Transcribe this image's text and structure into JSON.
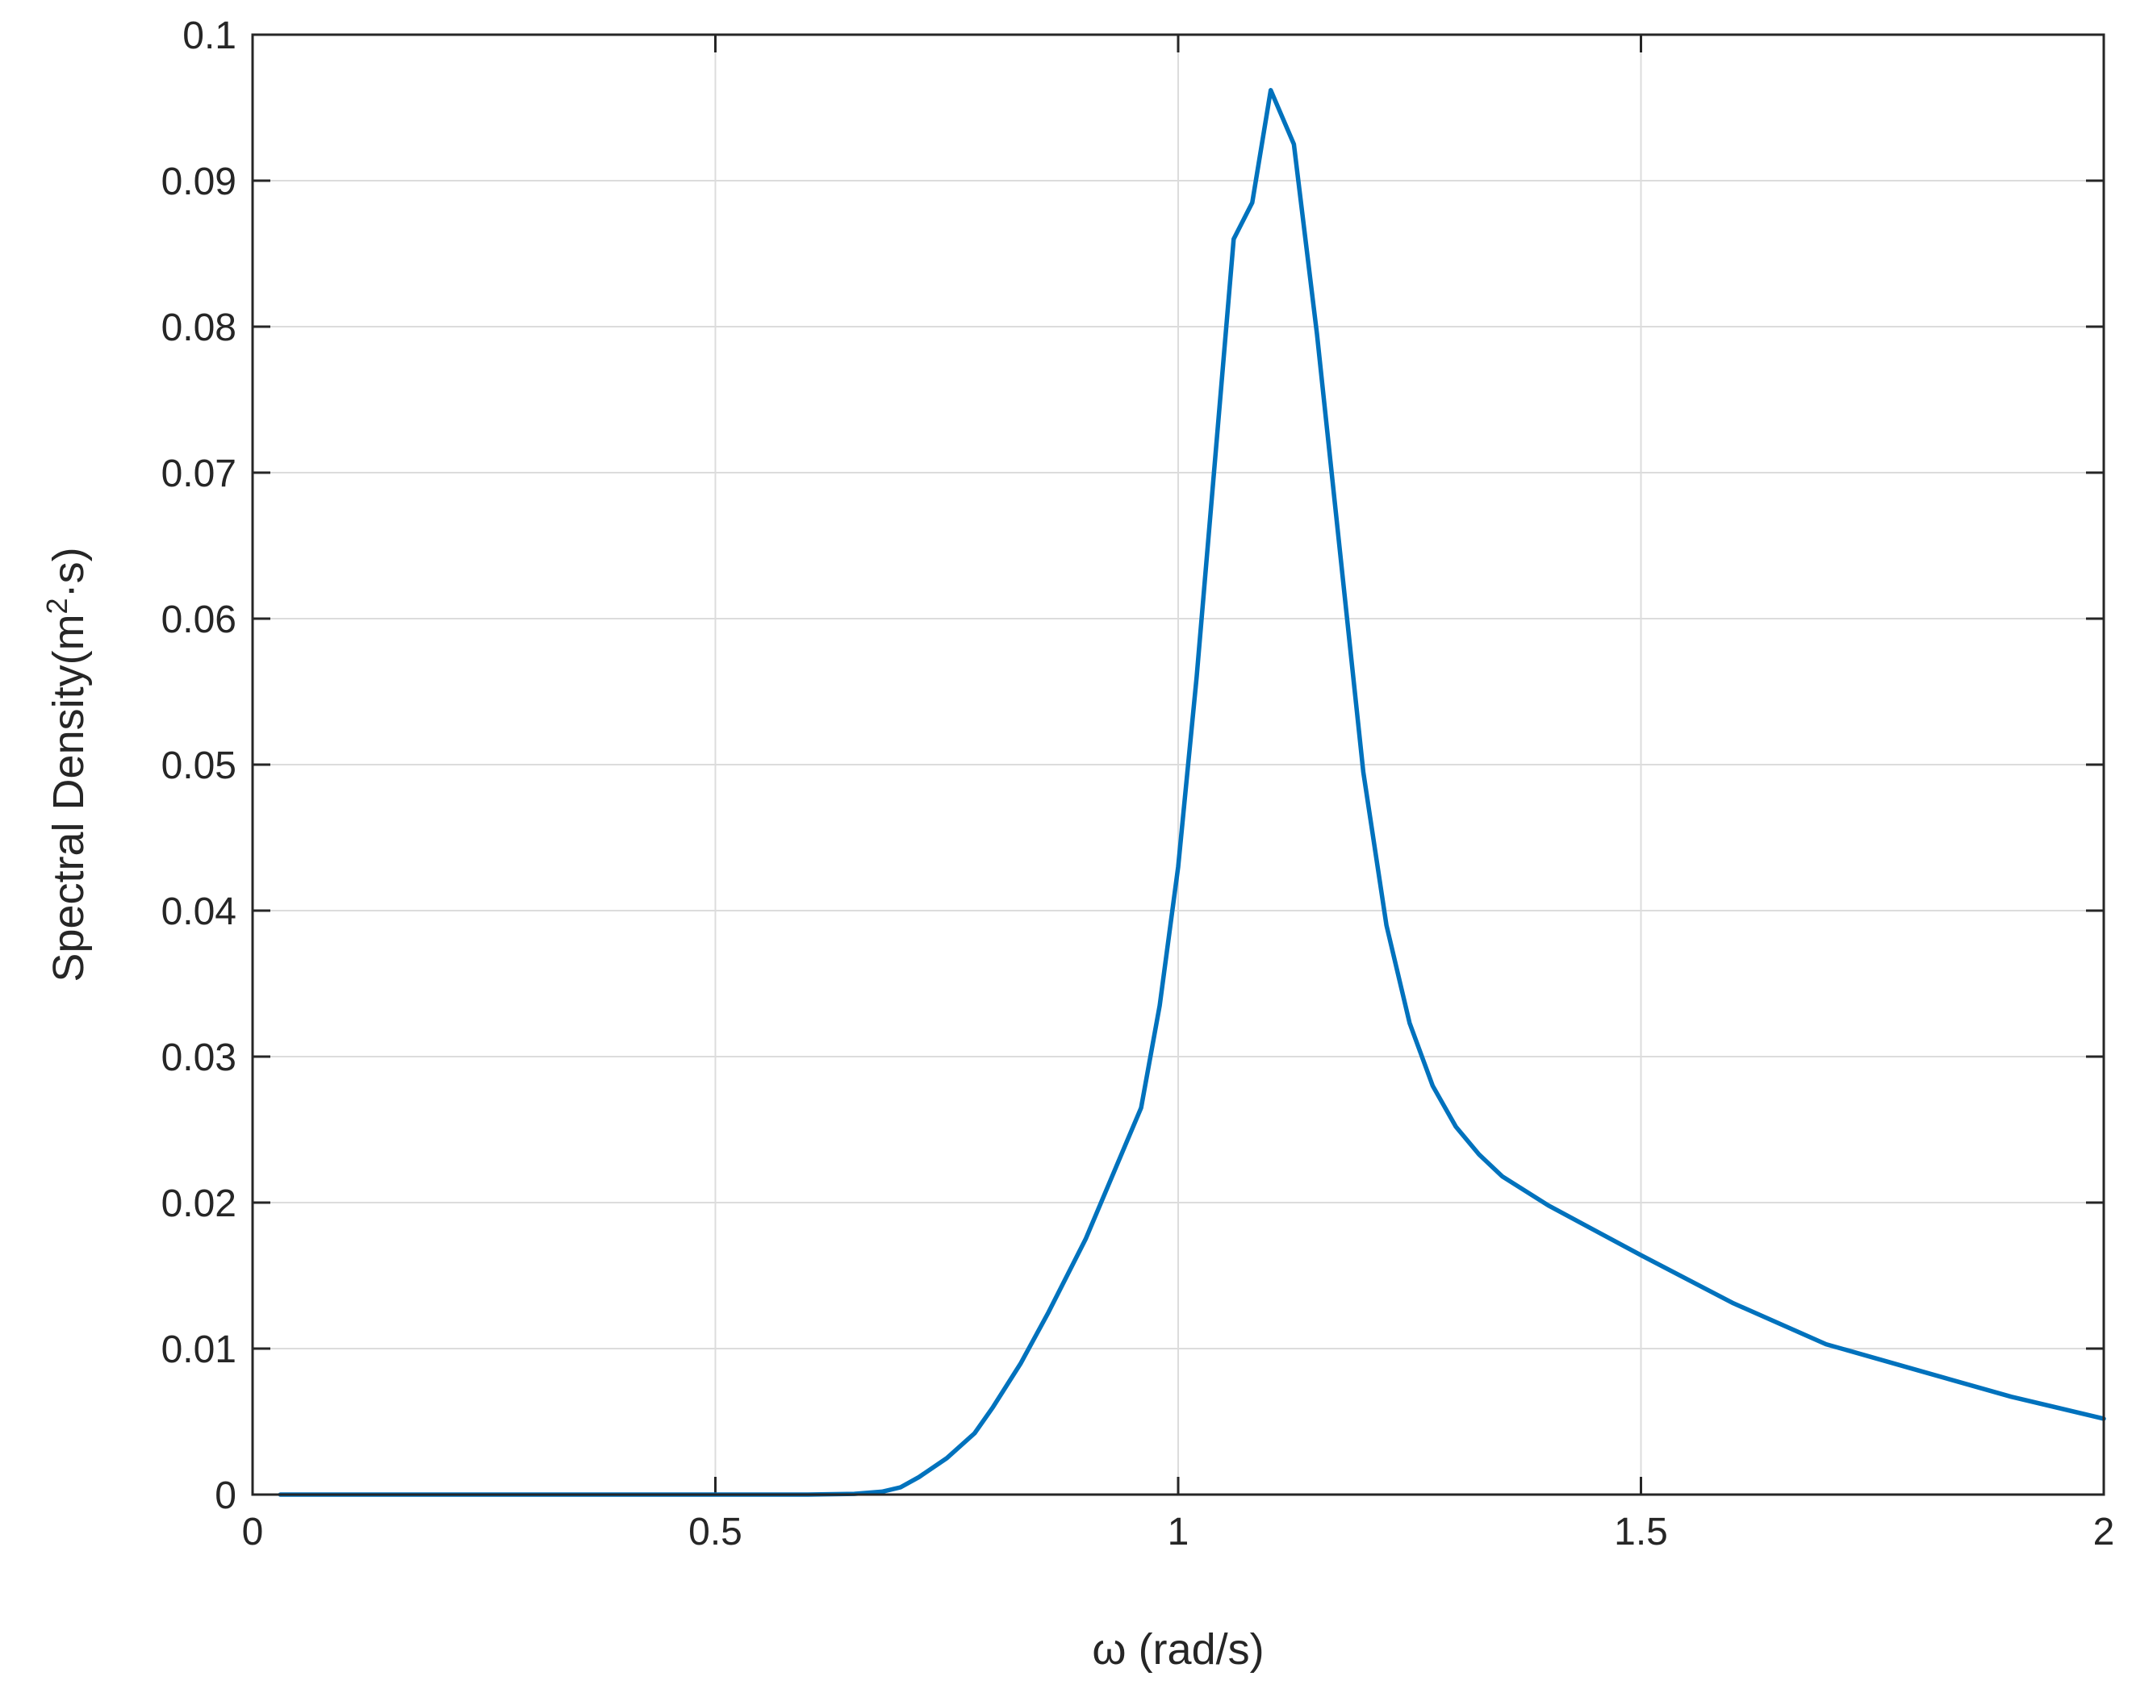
{
  "chart_data": {
    "type": "line",
    "title": "",
    "xlabel": "ω (rad/s)",
    "ylabel": "Spectral Density(m²·s)",
    "ylabel_parts": {
      "prefix": "Spectral Density(m",
      "superscript": "2",
      "suffix": "·s)"
    },
    "xlim": [
      0,
      2
    ],
    "ylim": [
      0,
      0.1
    ],
    "xticks": [
      0,
      0.5,
      1,
      1.5,
      2
    ],
    "xtick_labels": [
      "0",
      "0.5",
      "1",
      "1.5",
      "2"
    ],
    "yticks": [
      0,
      0.01,
      0.02,
      0.03,
      0.04,
      0.05,
      0.06,
      0.07,
      0.08,
      0.09,
      0.1
    ],
    "ytick_labels": [
      "0",
      "0.01",
      "0.02",
      "0.03",
      "0.04",
      "0.05",
      "0.06",
      "0.07",
      "0.08",
      "0.09",
      "0.1"
    ],
    "grid": true,
    "line_color": "#0072BD",
    "series": [
      {
        "x": [
          0.03,
          0.2,
          0.4,
          0.6,
          0.65,
          0.68,
          0.7,
          0.72,
          0.75,
          0.78,
          0.8,
          0.83,
          0.86,
          0.9,
          0.93,
          0.96,
          0.98,
          1.0,
          1.02,
          1.04,
          1.06,
          1.08,
          1.1,
          1.125,
          1.15,
          1.175,
          1.2,
          1.225,
          1.25,
          1.275,
          1.3,
          1.325,
          1.35,
          1.4,
          1.5,
          1.6,
          1.7,
          1.8,
          1.9,
          2.0
        ],
        "y": [
          0,
          0,
          0,
          0,
          5e-05,
          0.0002,
          0.0005,
          0.0012,
          0.0025,
          0.0042,
          0.006,
          0.009,
          0.0125,
          0.0175,
          0.022,
          0.0265,
          0.0335,
          0.043,
          0.056,
          0.071,
          0.086,
          0.0885,
          0.0962,
          0.0925,
          0.0795,
          0.0645,
          0.0495,
          0.039,
          0.0323,
          0.028,
          0.0252,
          0.0233,
          0.0218,
          0.0198,
          0.0164,
          0.0131,
          0.0103,
          0.0085,
          0.0067,
          0.0052
        ]
      }
    ]
  }
}
